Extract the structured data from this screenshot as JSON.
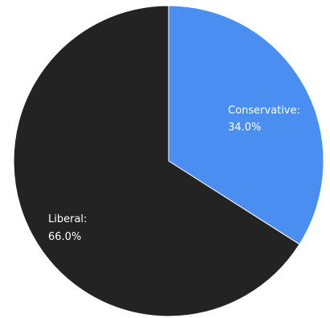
{
  "chart_data": {
    "type": "pie",
    "slices": [
      {
        "name": "Conservative",
        "label": "Conservative:",
        "value_text": "34.0%",
        "value": 34.0,
        "color": "#4a8ef1"
      },
      {
        "name": "Liberal",
        "label": "Liberal:",
        "value_text": "66.0%",
        "value": 66.0,
        "color": "#232323"
      }
    ],
    "start": "top",
    "direction": "clockwise",
    "title": "",
    "legend": "none"
  }
}
